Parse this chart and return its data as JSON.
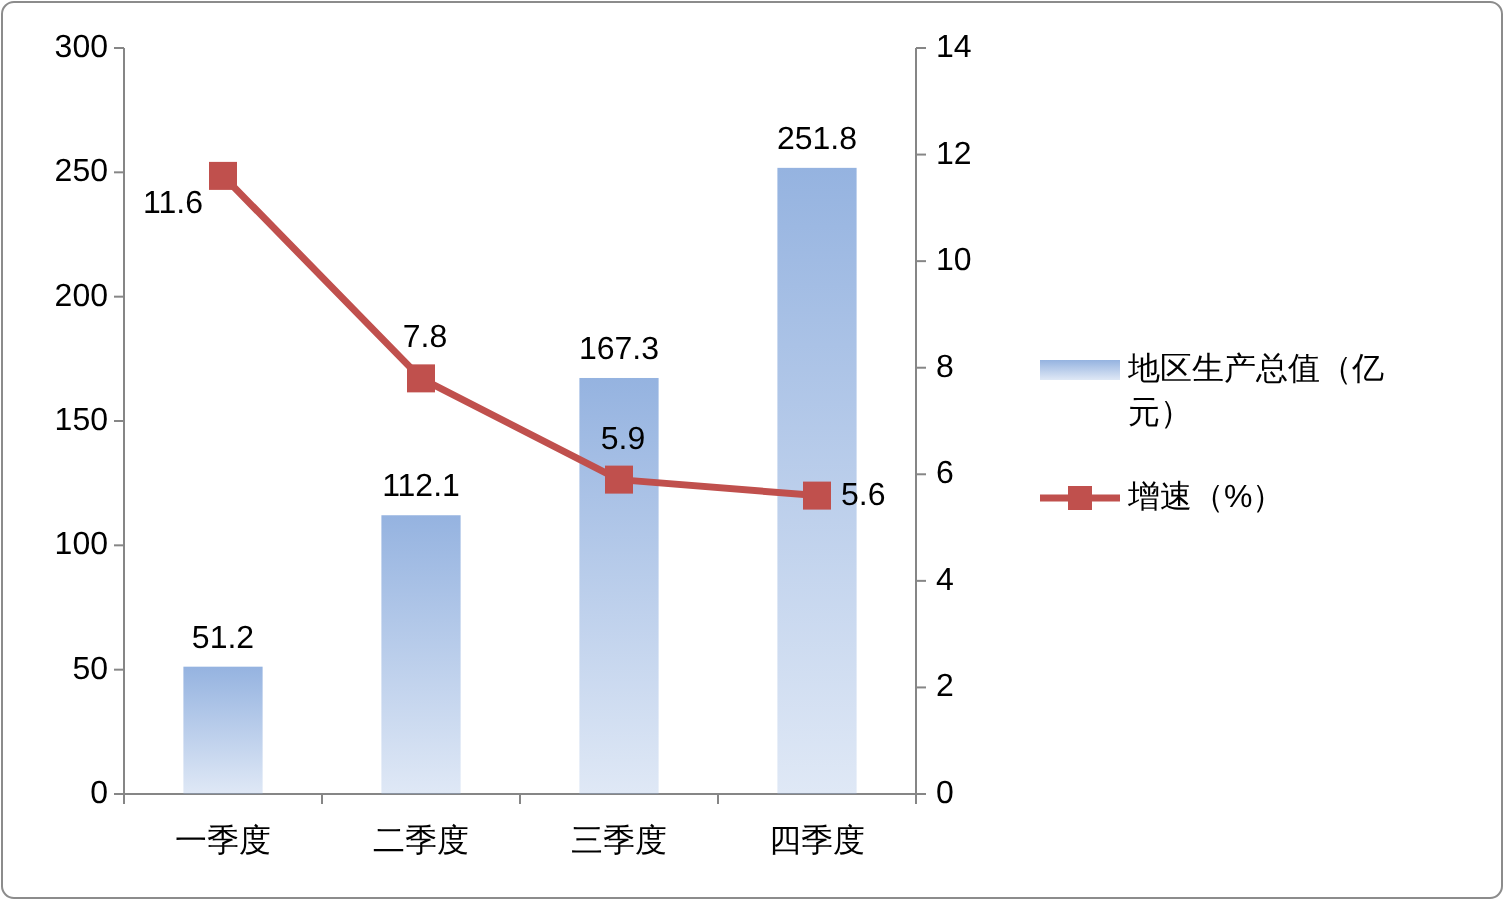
{
  "chart_data": {
    "type": "bar",
    "categories": [
      "一季度",
      "二季度",
      "三季度",
      "四季度"
    ],
    "series": [
      {
        "name": "地区生产总值（亿元）",
        "color": "#95b3e0",
        "values": [
          51.2,
          112.1,
          167.3,
          251.8
        ]
      },
      {
        "name": "增速（%）",
        "type": "line",
        "axis": "y2",
        "color": "#c0504d",
        "values": [
          11.6,
          7.8,
          5.9,
          5.6
        ]
      }
    ],
    "ylim": [
      0,
      300
    ],
    "yticks": [
      0,
      50,
      100,
      150,
      200,
      250,
      300
    ],
    "y2lim": [
      0,
      14
    ],
    "y2ticks": [
      0,
      2,
      4,
      6,
      8,
      10,
      12,
      14
    ],
    "data_labels": true,
    "legend": "right",
    "marker": "square"
  }
}
